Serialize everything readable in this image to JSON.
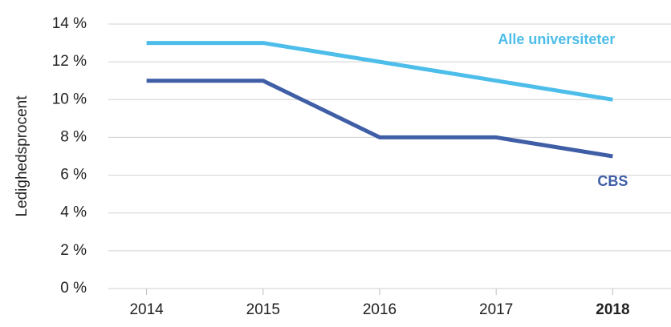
{
  "chart_data": {
    "type": "line",
    "y_label": "Ledighedsprocent",
    "categories": [
      "2014",
      "2015",
      "2016",
      "2017",
      "2018"
    ],
    "series": [
      {
        "name": "Alle universiteter",
        "color": "#4dbde9",
        "values": [
          13,
          13,
          12,
          11,
          10
        ]
      },
      {
        "name": "CBS",
        "color": "#3f5ea6",
        "values": [
          11,
          11,
          8,
          8,
          7
        ]
      }
    ],
    "ylim": [
      0,
      14
    ],
    "yticks": [
      {
        "value": 0,
        "label": "0 %"
      },
      {
        "value": 2,
        "label": "2 %"
      },
      {
        "value": 4,
        "label": "4 %"
      },
      {
        "value": 6,
        "label": "6 %"
      },
      {
        "value": 8,
        "label": "8 %"
      },
      {
        "value": 10,
        "label": "10 %"
      },
      {
        "value": 12,
        "label": "12 %"
      },
      {
        "value": 14,
        "label": "14 %"
      }
    ],
    "grid": true
  }
}
